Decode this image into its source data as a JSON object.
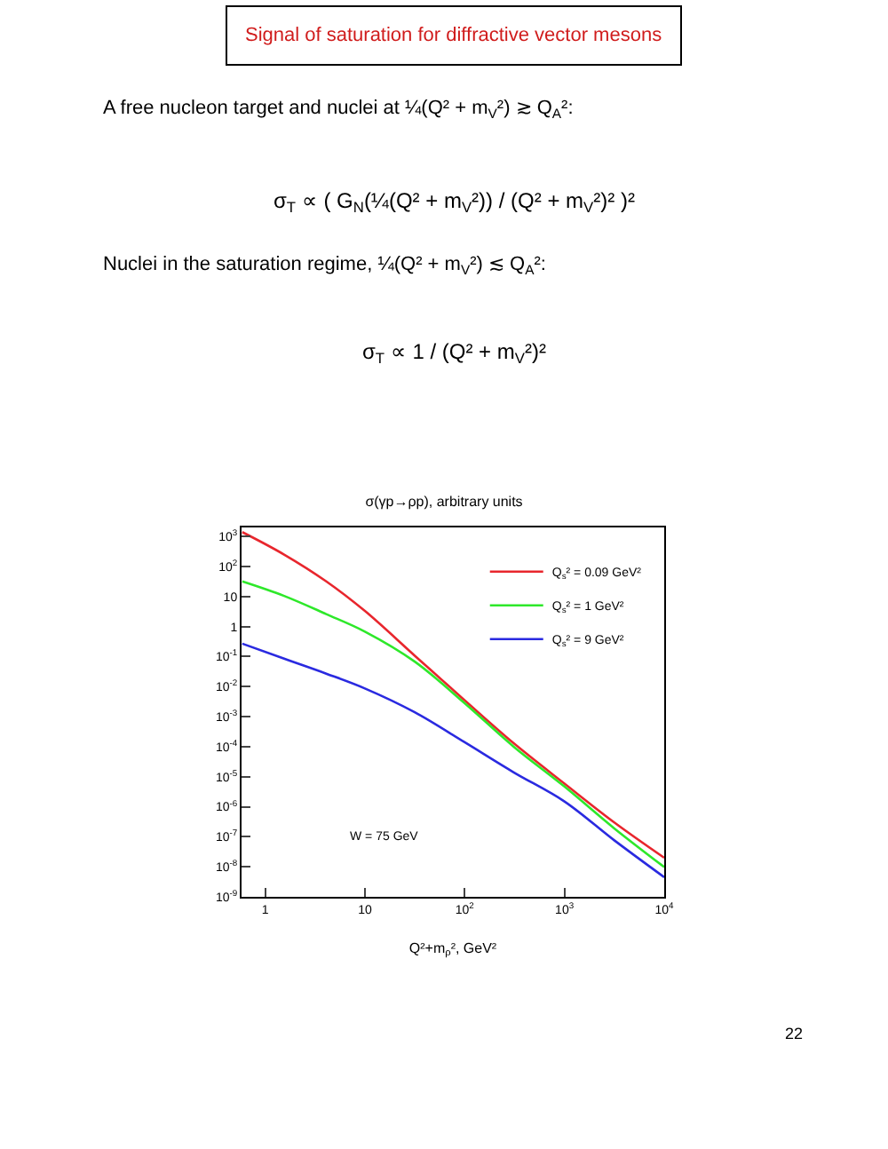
{
  "chart_data": {
    "type": "line",
    "title": "σ(γp→ρp), arbitrary units",
    "xlabel": "Q²+m$_{ρ}$², GeV²",
    "x": [
      0.59,
      1.55,
      4.1,
      10,
      31.6,
      100,
      310,
      1000,
      3160,
      10000
    ],
    "series": [
      {
        "name": "Q$_{s}$² = 0.09 GeV²",
        "color": "#e8262d",
        "values": [
          1400,
          250,
          32,
          3.3,
          0.107,
          0.0035,
          0.00013,
          5.9e-06,
          3e-07,
          2e-08
        ]
      },
      {
        "name": "Q$_{s}$² = 1 GeV²",
        "color": "#2ee82a",
        "values": [
          32,
          10.5,
          2.6,
          0.68,
          0.068,
          0.0028,
          0.0001,
          4.7e-06,
          1.9e-07,
          9.8e-09
        ]
      },
      {
        "name": "Q$_{s}$² = 9 GeV²",
        "color": "#2a2ae0",
        "values": [
          0.27,
          0.085,
          0.027,
          0.0087,
          0.0014,
          0.00014,
          1.4e-05,
          1.5e-06,
          7.6e-08,
          4.5e-09
        ]
      }
    ],
    "log": "xy",
    "xlim": [
      0.58,
      10000
    ],
    "ylim": [
      1e-09,
      2000
    ],
    "xticks": [
      1,
      10,
      {
        "value": 100,
        "label": "10$^{2}$"
      },
      {
        "value": 1000,
        "label": "10$^{3}$"
      },
      {
        "value": 10000,
        "label": "10$^{4}$"
      }
    ],
    "yticks": [
      {
        "value": 1000,
        "label": "10$^{3}$"
      },
      {
        "value": 100,
        "label": "10$^{2}$"
      },
      10,
      1,
      {
        "value": 0.1,
        "label": "10$^{-1}$"
      },
      {
        "value": 0.01,
        "label": "10$^{-2}$"
      },
      {
        "value": 0.001,
        "label": "10$^{-3}$"
      },
      {
        "value": 0.0001,
        "label": "10$^{-4}$"
      },
      {
        "value": 1e-05,
        "label": "10$^{-5}$"
      },
      {
        "value": 1e-06,
        "label": "10$^{-6}$"
      },
      {
        "value": 1e-07,
        "label": "10$^{-7}$"
      },
      {
        "value": 1e-08,
        "label": "10$^{-8}$"
      },
      {
        "value": 1e-09,
        "label": "10$^{-9}$"
      }
    ],
    "legend": "top right",
    "marker": "none",
    "line_style": "solid",
    "annotations": [
      "Signal of saturation for diffractive vector mesons",
      "A free nucleon target and nuclei at ¼(Q² + m$_{V}$²) ≳ Q$_{A}$²:",
      "σ$_{T}$ ∝ ( G$_{N}$(¼(Q² + m$_{V}$²)) / (Q² + m$_{V}$²)² )²",
      "Nuclei in the saturation regime, ¼(Q² + m$_{V}$²) ≲ Q$_{A}$²:",
      "σ$_{T}$ ∝ 1 / (Q² + m$_{V}$²)²",
      "W = 75 GeV",
      "22"
    ]
  }
}
